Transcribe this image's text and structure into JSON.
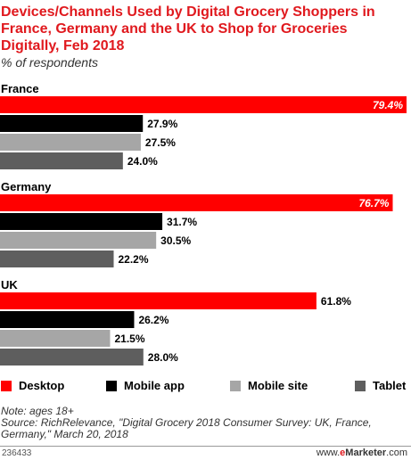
{
  "title": "Devices/Channels Used by Digital Grocery Shoppers in France, Germany and the UK to Shop for Groceries Digitally, Feb 2018",
  "subtitle": "% of respondents",
  "chart_data": {
    "type": "bar",
    "orientation": "horizontal",
    "title": "Devices/Channels Used by Digital Grocery Shoppers in France, Germany and the UK to Shop for Groceries Digitally, Feb 2018",
    "subtitle": "% of respondents",
    "categories": [
      "France",
      "Germany",
      "UK"
    ],
    "series": [
      {
        "name": "Desktop",
        "color": "#ff0000",
        "values": [
          79.4,
          76.7,
          61.8
        ]
      },
      {
        "name": "Mobile app",
        "color": "#000000",
        "values": [
          27.9,
          31.7,
          26.2
        ]
      },
      {
        "name": "Mobile site",
        "color": "#a6a6a6",
        "values": [
          27.5,
          30.5,
          21.5
        ]
      },
      {
        "name": "Tablet",
        "color": "#5e5e5e",
        "values": [
          24.0,
          22.2,
          28.0
        ]
      }
    ],
    "value_format": "{v}%",
    "xlim": [
      0,
      79.4
    ],
    "grid": false,
    "legend": "bottom"
  },
  "legend": {
    "desktop": "Desktop",
    "mobile_app": "Mobile app",
    "mobile_site": "Mobile site",
    "tablet": "Tablet"
  },
  "note": "Note: ages 18+",
  "source": "Source: RichRelevance, \"Digital Grocery 2018 Consumer Survey: UK, France, Germany,\" March 20, 2018",
  "footer": {
    "chart_id": "236433",
    "brand_prefix": "www.",
    "brand_e": "e",
    "brand_rest": "Marketer",
    "brand_suffix": ".com"
  }
}
